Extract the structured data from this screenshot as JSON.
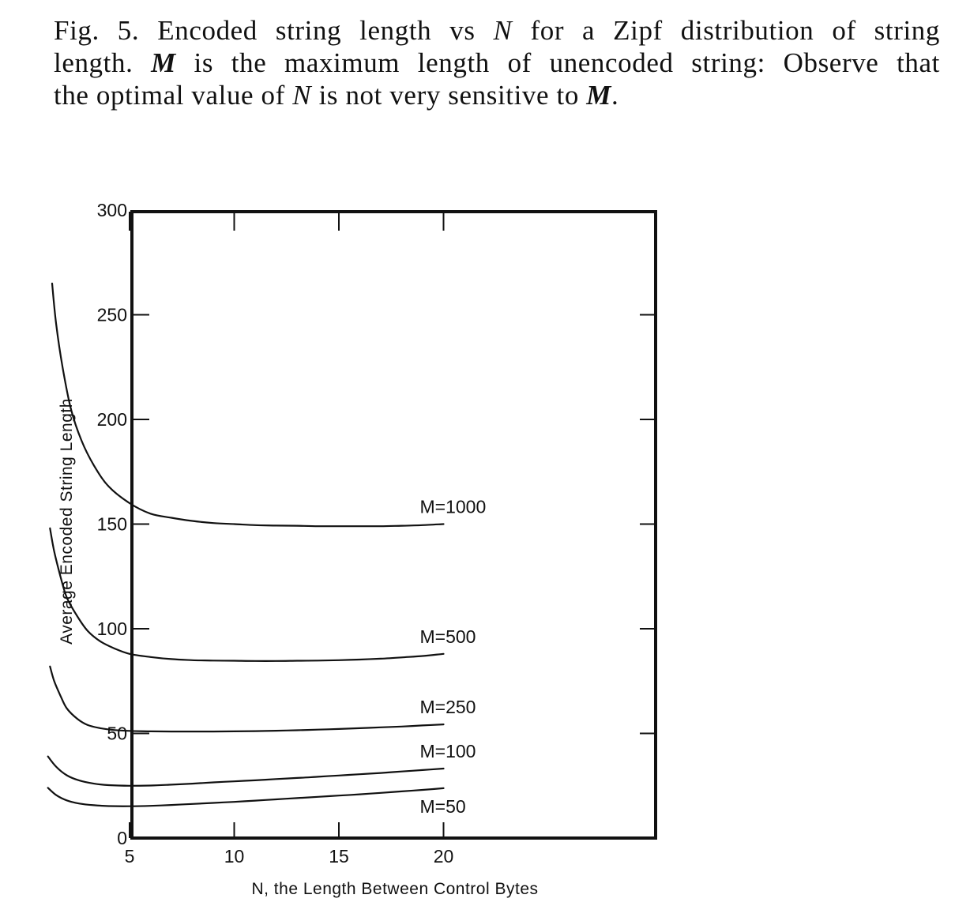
{
  "caption": {
    "fig_label": "Fig. 5.",
    "text_1": "Encoded string length vs",
    "var_n_1": "N",
    "text_2": "for a Zipf distribution of string",
    "text_3": "length.",
    "var_m_1": "M",
    "text_4": "is the maximum length of unencoded string: Observe that",
    "text_5": "the optimal value of",
    "var_n_2": "N",
    "text_6": "is not very sensitive to",
    "var_m_2": "M",
    "text_7": "."
  },
  "chart_data": {
    "type": "line",
    "title": "",
    "xlabel": "N, the Length Between Control Bytes",
    "ylabel": "Average Encoded String Length",
    "xlim": [
      0,
      25
    ],
    "ylim": [
      0,
      300
    ],
    "x_ticks": [
      5,
      10,
      15,
      20
    ],
    "x_tick_labels": [
      "5",
      "10",
      "15",
      "20"
    ],
    "y_ticks": [
      0,
      50,
      100,
      150,
      200,
      250,
      300
    ],
    "y_tick_labels": [
      "0",
      "50",
      "100",
      "150",
      "200",
      "250",
      "300"
    ],
    "grid": false,
    "legend": "none",
    "line_color": "#111111",
    "series": [
      {
        "name": "M=1000",
        "x": [
          1.3,
          1.5,
          1.8,
          2.2,
          2.7,
          3.3,
          4,
          5,
          6,
          7,
          8,
          9,
          10,
          11,
          12,
          13,
          14,
          15,
          16,
          17,
          18,
          19,
          20
        ],
        "y": [
          265,
          245,
          225,
          205,
          190,
          178,
          168,
          160,
          155,
          153,
          151.5,
          150.5,
          150,
          149.5,
          149.3,
          149.2,
          149,
          149,
          149,
          149,
          149.2,
          149.5,
          150
        ]
      },
      {
        "name": "M=500",
        "x": [
          1.2,
          1.4,
          1.7,
          2,
          2.5,
          3,
          3.6,
          4.3,
          5,
          6,
          7,
          8,
          9,
          10,
          11,
          12,
          13,
          14,
          15,
          16,
          17,
          18,
          19,
          20
        ],
        "y": [
          148,
          137,
          125,
          115,
          106,
          99,
          94,
          90.5,
          88,
          86.5,
          85.5,
          85,
          84.8,
          84.7,
          84.6,
          84.6,
          84.7,
          84.8,
          85,
          85.3,
          85.7,
          86.3,
          87,
          88
        ]
      },
      {
        "name": "M=250",
        "x": [
          1.2,
          1.4,
          1.7,
          2,
          2.5,
          3,
          3.6,
          4.3,
          5,
          6,
          7,
          8,
          9,
          10,
          11,
          12,
          13,
          14,
          15,
          16,
          17,
          18,
          19,
          20
        ],
        "y": [
          82,
          75,
          68,
          62,
          57,
          54,
          52.5,
          51.6,
          51.2,
          51,
          50.9,
          50.9,
          50.9,
          51,
          51.1,
          51.3,
          51.5,
          51.8,
          52.1,
          52.5,
          52.9,
          53.3,
          53.8,
          54.3
        ]
      },
      {
        "name": "M=100",
        "x": [
          1.1,
          1.5,
          2,
          2.6,
          3.3,
          4,
          5,
          6,
          7,
          8,
          9,
          10,
          11,
          12,
          13,
          14,
          15,
          16,
          17,
          18,
          19,
          20
        ],
        "y": [
          39,
          34,
          30,
          27.5,
          26,
          25.3,
          25,
          25.1,
          25.5,
          26,
          26.6,
          27.1,
          27.6,
          28.2,
          28.7,
          29.3,
          29.9,
          30.5,
          31.1,
          31.8,
          32.5,
          33.2
        ]
      },
      {
        "name": "M=50",
        "x": [
          1.1,
          1.5,
          2,
          2.6,
          3.3,
          4,
          5,
          6,
          7,
          8,
          9,
          10,
          11,
          12,
          13,
          14,
          15,
          16,
          17,
          18,
          19,
          20
        ],
        "y": [
          24,
          20.5,
          18,
          16.5,
          15.7,
          15.3,
          15.2,
          15.4,
          15.8,
          16.3,
          16.8,
          17.3,
          17.9,
          18.5,
          19.1,
          19.7,
          20.3,
          20.9,
          21.6,
          22.3,
          23,
          23.8
        ]
      }
    ],
    "series_labels": [
      "M=1000",
      "M=500",
      "M=250",
      "M=100",
      "M=50"
    ]
  }
}
